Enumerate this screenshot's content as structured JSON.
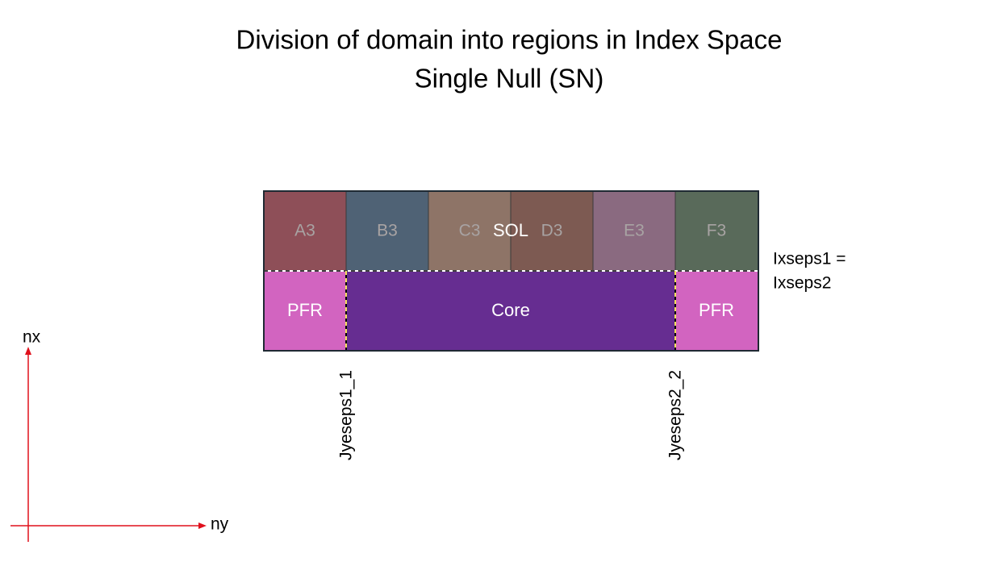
{
  "title": [
    "Division of domain into regions in Index Space",
    "Single Null (SN)"
  ],
  "sol_label": "SOL",
  "sol_cells": [
    "A3",
    "B3",
    "C3",
    "D3",
    "E3",
    "F3"
  ],
  "bottom_cells": [
    "PFR",
    "Core",
    "PFR"
  ],
  "separatrix_label": [
    "Ixseps1 =",
    "Ixseps2"
  ],
  "cut_labels": [
    "Jyeseps1_1",
    "Jyeseps2_2"
  ],
  "axes": {
    "vertical": "nx",
    "horizontal": "ny"
  }
}
